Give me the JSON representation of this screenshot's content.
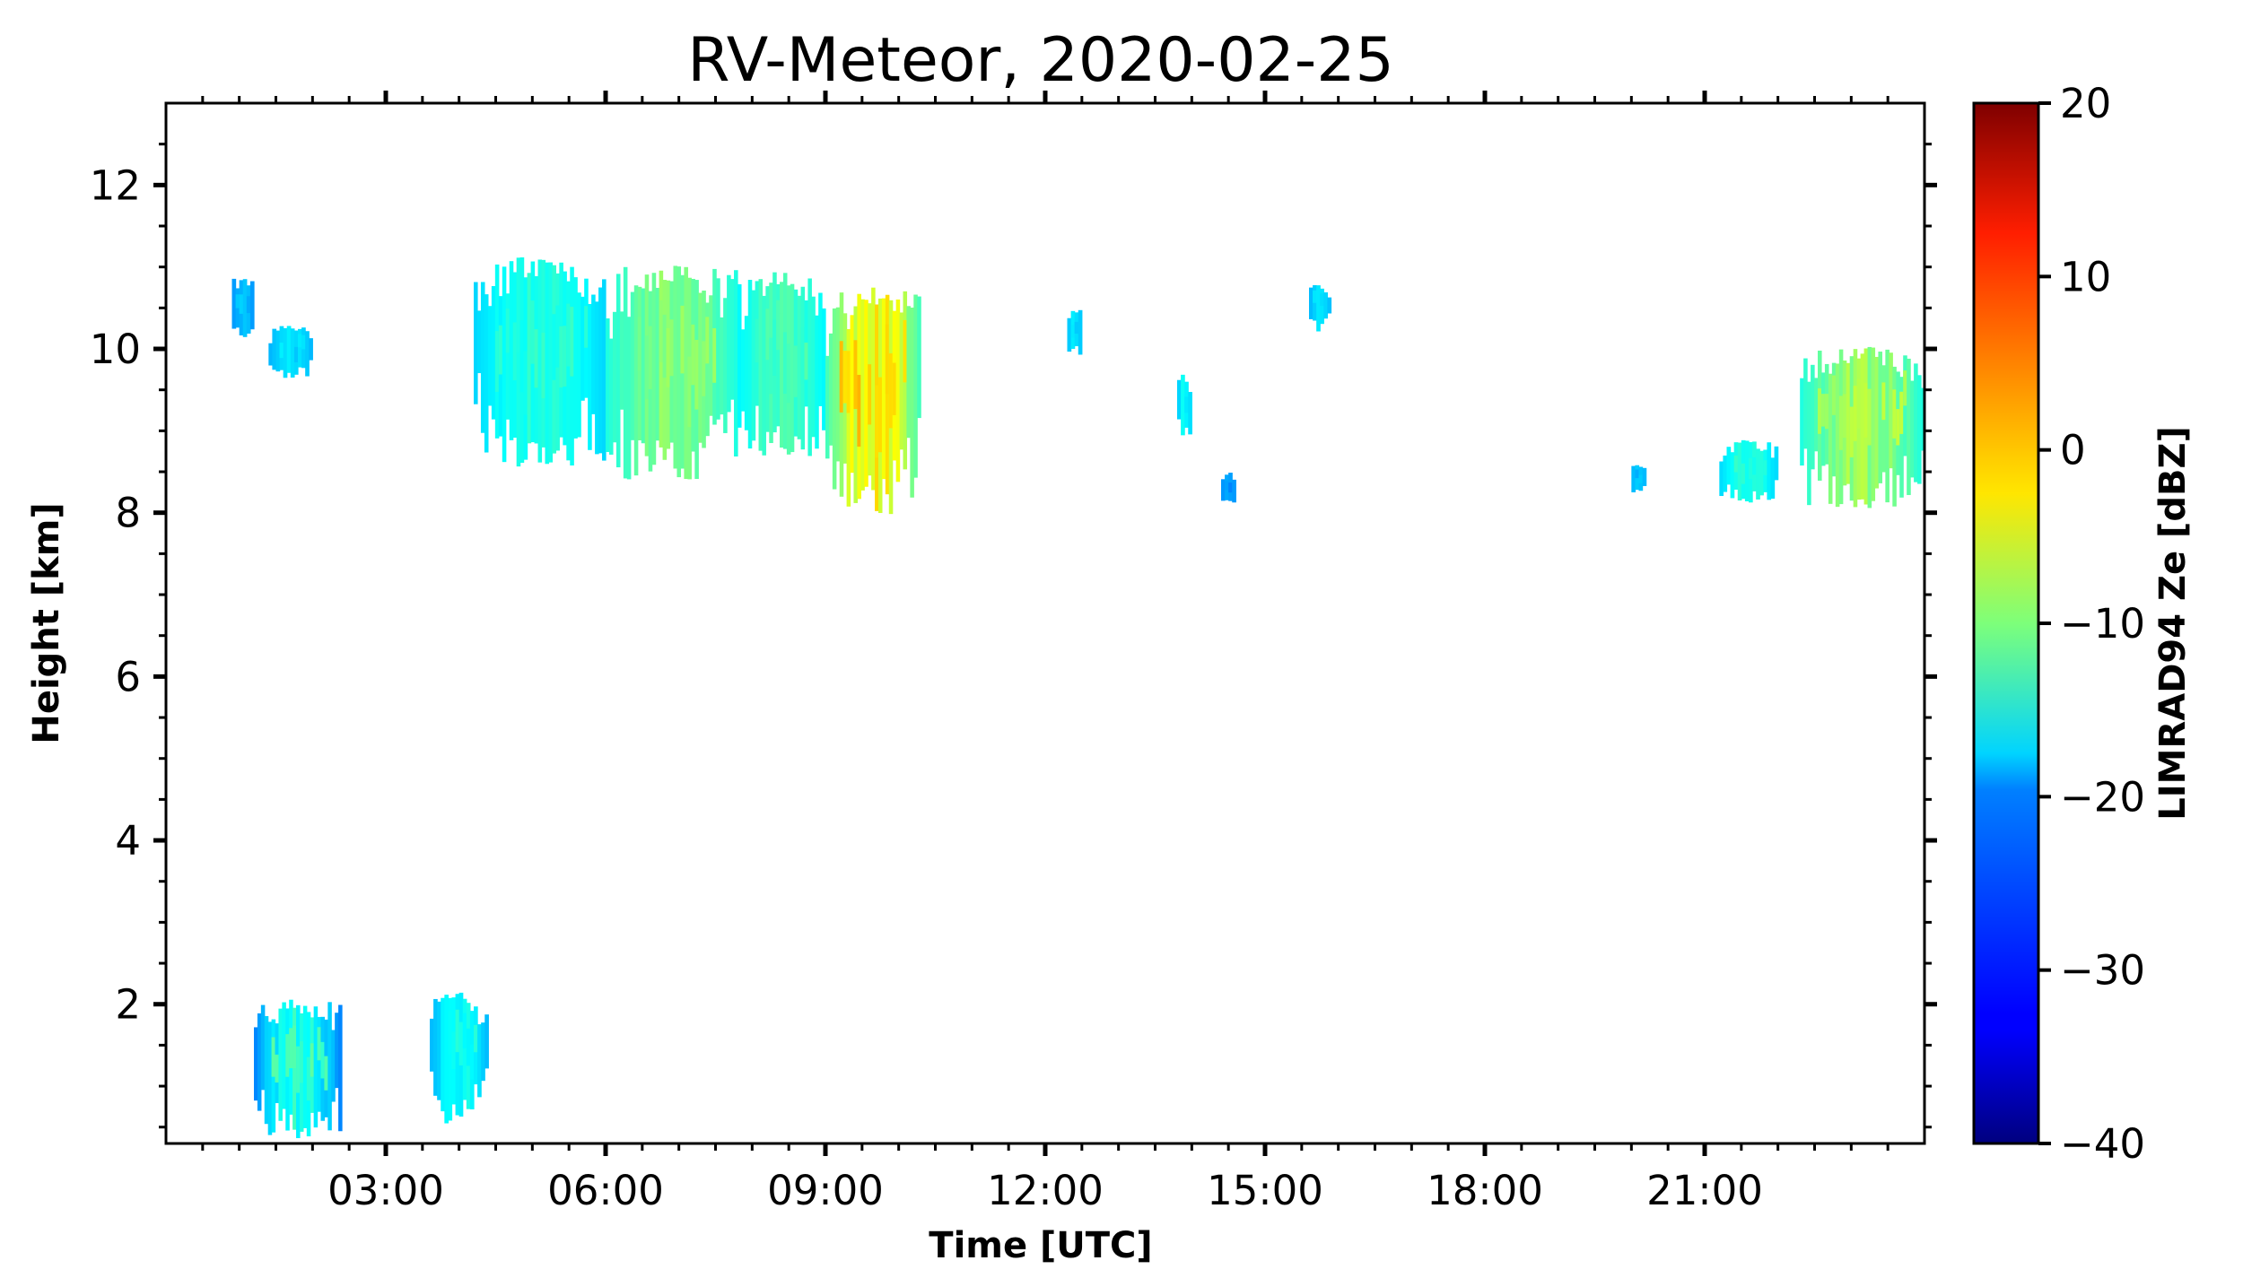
{
  "chart_data": {
    "type": "heatmap",
    "title": "RV-Meteor, 2020-02-25",
    "xlabel": "Time [UTC]",
    "ylabel": "Height [km]",
    "colorbar_label": "LIMRAD94 Ze [dBZ]",
    "xlim_hours": [
      0.0,
      24.0
    ],
    "ylim_km": [
      0.3,
      13.0
    ],
    "clim_dbz": [
      -40,
      20
    ],
    "colormap": "jet",
    "x_ticks": [
      {
        "hour": 3,
        "label": "03:00"
      },
      {
        "hour": 6,
        "label": "06:00"
      },
      {
        "hour": 9,
        "label": "09:00"
      },
      {
        "hour": 12,
        "label": "12:00"
      },
      {
        "hour": 15,
        "label": "15:00"
      },
      {
        "hour": 18,
        "label": "18:00"
      },
      {
        "hour": 21,
        "label": "21:00"
      }
    ],
    "y_ticks": [
      {
        "km": 2,
        "label": "2"
      },
      {
        "km": 4,
        "label": "4"
      },
      {
        "km": 6,
        "label": "6"
      },
      {
        "km": 8,
        "label": "8"
      },
      {
        "km": 10,
        "label": "10"
      },
      {
        "km": 12,
        "label": "12"
      }
    ],
    "colorbar_ticks": [
      {
        "dbz": 20,
        "label": "20"
      },
      {
        "dbz": 10,
        "label": "10"
      },
      {
        "dbz": 0,
        "label": "0"
      },
      {
        "dbz": -10,
        "label": "−10"
      },
      {
        "dbz": -20,
        "label": "−20"
      },
      {
        "dbz": -30,
        "label": "−30"
      },
      {
        "dbz": -40,
        "label": "−40"
      }
    ],
    "echo_regions": [
      {
        "name": "low-cloud-1",
        "t0": 1.2,
        "t1": 2.4,
        "z0": 0.3,
        "z1": 2.1,
        "dbz": -25,
        "core_dbz": -12
      },
      {
        "name": "low-cloud-2",
        "t0": 3.6,
        "t1": 4.4,
        "z0": 0.5,
        "z1": 2.2,
        "dbz": -22,
        "core_dbz": -15
      },
      {
        "name": "high-cloud-small-1",
        "t0": 0.9,
        "t1": 1.2,
        "z0": 10.1,
        "z1": 10.9,
        "dbz": -24,
        "core_dbz": -20
      },
      {
        "name": "high-cloud-small-2",
        "t0": 1.4,
        "t1": 2.0,
        "z0": 9.6,
        "z1": 10.3,
        "dbz": -22,
        "core_dbz": -18
      },
      {
        "name": "high-cloud-main-1",
        "t0": 4.2,
        "t1": 6.0,
        "z0": 8.5,
        "z1": 11.2,
        "dbz": -20,
        "core_dbz": -14
      },
      {
        "name": "high-cloud-main-2",
        "t0": 6.0,
        "t1": 7.8,
        "z0": 8.3,
        "z1": 11.1,
        "dbz": -16,
        "core_dbz": -8
      },
      {
        "name": "high-cloud-main-3",
        "t0": 7.8,
        "t1": 9.0,
        "z0": 8.6,
        "z1": 11.0,
        "dbz": -18,
        "core_dbz": -12
      },
      {
        "name": "high-cloud-main-4",
        "t0": 9.0,
        "t1": 10.3,
        "z0": 7.9,
        "z1": 10.8,
        "dbz": -14,
        "core_dbz": 2
      },
      {
        "name": "high-cloud-13h",
        "t0": 12.3,
        "t1": 12.5,
        "z0": 9.9,
        "z1": 10.5,
        "dbz": -22,
        "core_dbz": -18
      },
      {
        "name": "high-cloud-14h",
        "t0": 13.8,
        "t1": 14.0,
        "z0": 8.9,
        "z1": 9.7,
        "dbz": -21,
        "core_dbz": -16
      },
      {
        "name": "high-cloud-14h-low",
        "t0": 14.4,
        "t1": 14.6,
        "z0": 8.1,
        "z1": 8.5,
        "dbz": -24,
        "core_dbz": -22
      },
      {
        "name": "high-cloud-16h",
        "t0": 15.6,
        "t1": 15.9,
        "z0": 10.2,
        "z1": 10.8,
        "dbz": -22,
        "core_dbz": -18
      },
      {
        "name": "high-cloud-20h",
        "t0": 20.0,
        "t1": 20.2,
        "z0": 8.2,
        "z1": 8.6,
        "dbz": -22,
        "core_dbz": -20
      },
      {
        "name": "high-cloud-21h",
        "t0": 21.2,
        "t1": 22.0,
        "z0": 8.1,
        "z1": 8.9,
        "dbz": -20,
        "core_dbz": -14
      },
      {
        "name": "high-cloud-23h",
        "t0": 22.3,
        "t1": 24.0,
        "z0": 8.0,
        "z1": 10.1,
        "dbz": -16,
        "core_dbz": -6
      }
    ]
  }
}
